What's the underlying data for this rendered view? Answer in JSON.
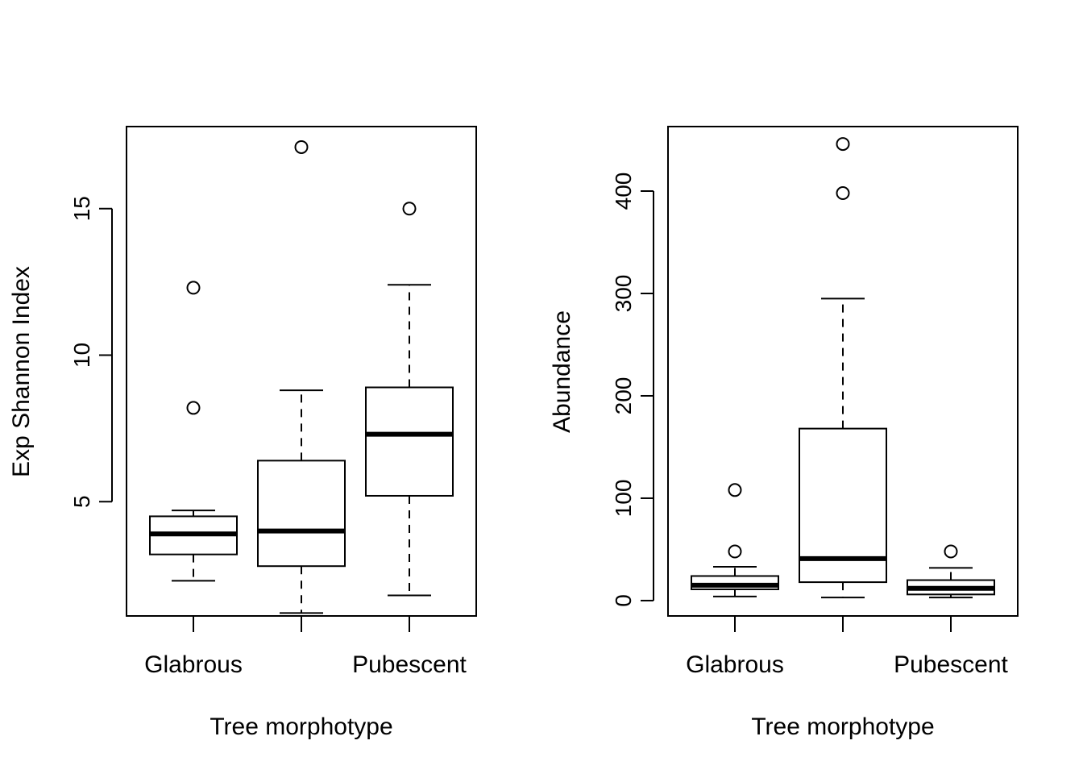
{
  "chart_data": [
    {
      "type": "boxplot",
      "title": "",
      "xlabel": "Tree morphotype",
      "ylabel": "Exp Shannon Index",
      "categories": [
        "Glabrous",
        "",
        "Pubescent"
      ],
      "yticks": [
        5,
        10,
        15
      ],
      "ylim": [
        1.1,
        17.8
      ],
      "grid": false,
      "boxes": [
        {
          "lower_whisker": 2.3,
          "q1": 3.2,
          "median": 3.9,
          "q3": 4.5,
          "upper_whisker": 4.7,
          "outliers": [
            8.2,
            12.3
          ]
        },
        {
          "lower_whisker": 1.2,
          "q1": 2.8,
          "median": 4.0,
          "q3": 6.4,
          "upper_whisker": 8.8,
          "outliers": [
            17.1
          ]
        },
        {
          "lower_whisker": 1.8,
          "q1": 5.2,
          "median": 7.3,
          "q3": 8.9,
          "upper_whisker": 12.4,
          "outliers": [
            15.0
          ]
        }
      ]
    },
    {
      "type": "boxplot",
      "title": "",
      "xlabel": "Tree morphotype",
      "ylabel": "Abundance",
      "categories": [
        "Glabrous",
        "",
        "Pubescent"
      ],
      "yticks": [
        0,
        100,
        200,
        300,
        400
      ],
      "ylim": [
        -15,
        463
      ],
      "grid": false,
      "boxes": [
        {
          "lower_whisker": 4,
          "q1": 11,
          "median": 15,
          "q3": 24,
          "upper_whisker": 33,
          "outliers": [
            48,
            108
          ]
        },
        {
          "lower_whisker": 3,
          "q1": 18,
          "median": 41,
          "q3": 168,
          "upper_whisker": 295,
          "outliers": [
            398,
            446
          ]
        },
        {
          "lower_whisker": 3,
          "q1": 6,
          "median": 12,
          "q3": 20,
          "upper_whisker": 32,
          "outliers": [
            48
          ]
        }
      ]
    }
  ]
}
